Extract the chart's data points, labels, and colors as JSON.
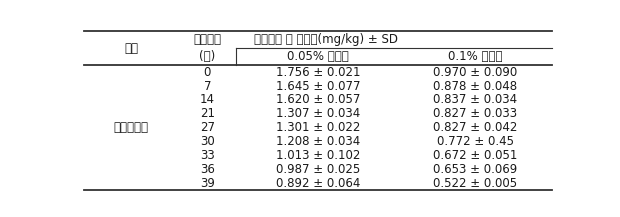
{
  "crop_label": "엇갈이배추",
  "header1_left1": "작물",
  "header1_left2": "경과일수",
  "header1_right": "토양시료 중 잔류량(mg/kg) ± SD",
  "header2_sub1": "0.05% 처리구",
  "header2_sub2": "0.1% 처리구",
  "header2_days": "(일)",
  "days": [
    0,
    7,
    14,
    21,
    27,
    30,
    33,
    36,
    39
  ],
  "col1": [
    "1.756 ± 0.021",
    "1.645 ± 0.077",
    "1.620 ± 0.057",
    "1.307 ± 0.034",
    "1.301 ± 0.022",
    "1.208 ± 0.034",
    "1.013 ± 0.102",
    "0.987 ± 0.025",
    "0.892 ± 0.064"
  ],
  "col2": [
    "0.970 ± 0.090",
    "0.878 ± 0.048",
    "0.837 ± 0.034",
    "0.827 ± 0.033",
    "0.827 ± 0.042",
    "0.772 ± 0.45",
    "0.672 ± 0.051",
    "0.653 ± 0.069",
    "0.522 ± 0.005"
  ],
  "font_size": 8.5,
  "bg_color": "#ffffff",
  "text_color": "#1a1a1a",
  "line_color": "#333333"
}
